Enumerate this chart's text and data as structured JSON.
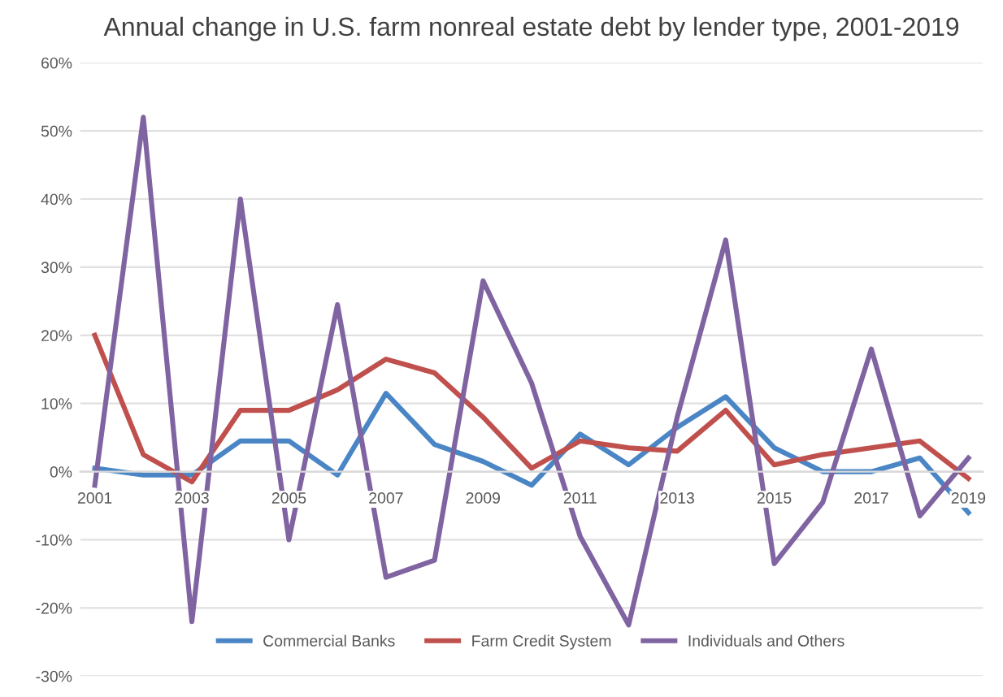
{
  "chart_data": {
    "type": "line",
    "title": "Annual change in U.S. farm nonreal estate debt by lender type, 2001-2019",
    "categories": [
      "2001",
      null,
      "2003",
      null,
      "2005",
      null,
      "2007",
      null,
      "2009",
      null,
      "2011",
      null,
      "2013",
      null,
      "2015",
      null,
      "2017",
      null,
      "2019"
    ],
    "series": [
      {
        "name": "Commercial Banks",
        "color": "#4a86c5",
        "values": [
          0.5,
          -0.5,
          -0.5,
          4.5,
          4.5,
          -0.5,
          11.5,
          4,
          1.5,
          -2,
          5.5,
          1,
          6.5,
          11,
          3.5,
          0,
          0,
          2,
          -6
        ]
      },
      {
        "name": "Farm Credit System",
        "color": "#c0504d",
        "values": [
          20,
          2.5,
          -1.5,
          9,
          9,
          12,
          16.5,
          14.5,
          8,
          0.5,
          4.5,
          3.5,
          3,
          9,
          1,
          2.5,
          3.5,
          4.5,
          -1
        ]
      },
      {
        "name": "Individuals and Others",
        "color": "#8064a2",
        "values": [
          -2,
          52,
          -22,
          40,
          -10,
          24.5,
          -15.5,
          -13,
          28,
          13,
          -9.5,
          -22.5,
          8,
          34,
          -13.5,
          -4.5,
          18,
          -6.5,
          2
        ]
      }
    ],
    "ylim": [
      -30,
      60
    ],
    "yticks": [
      {
        "value": -30,
        "label": "-30%"
      },
      {
        "value": -20,
        "label": "-20%"
      },
      {
        "value": -10,
        "label": "-10%"
      },
      {
        "value": 0,
        "label": "0%"
      },
      {
        "value": 10,
        "label": "10%"
      },
      {
        "value": 20,
        "label": "20%"
      },
      {
        "value": 30,
        "label": "30%"
      },
      {
        "value": 40,
        "label": "40%"
      },
      {
        "value": 50,
        "label": "50%"
      },
      {
        "value": 60,
        "label": "60%"
      }
    ],
    "grid": "y",
    "legend": "bottom",
    "marker": "none",
    "line_style": "solid"
  }
}
